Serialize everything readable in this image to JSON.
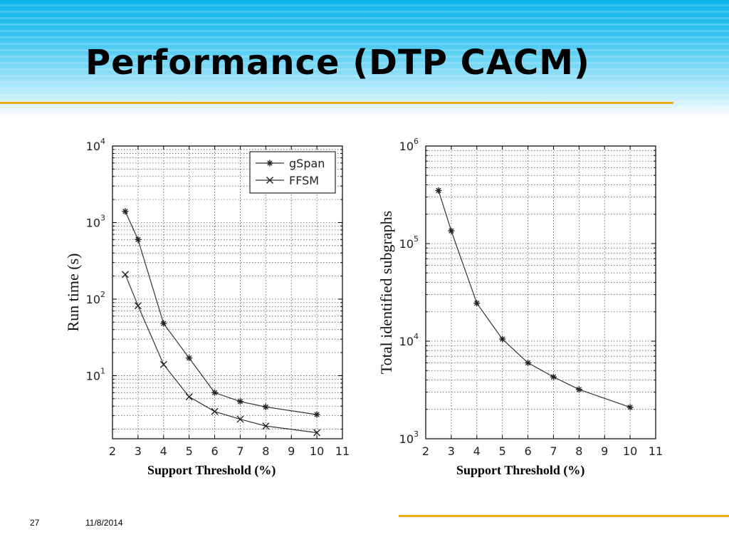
{
  "slide": {
    "title": "Performance (DTP CACM)",
    "page_number": "27",
    "date": "11/8/2014",
    "accent_color": "#f0a90f",
    "band_color": "#0bb3ea"
  },
  "chart_data": [
    {
      "type": "line",
      "xscale": "linear",
      "yscale": "log",
      "xlim": [
        2,
        11
      ],
      "ylim": [
        1.5,
        10000
      ],
      "xticks": [
        2,
        3,
        4,
        5,
        6,
        7,
        8,
        9,
        10,
        11
      ],
      "yticks": [
        {
          "value": 10,
          "base": "10",
          "exp": "1"
        },
        {
          "value": 100,
          "base": "10",
          "exp": "2"
        },
        {
          "value": 1000,
          "base": "10",
          "exp": "3"
        },
        {
          "value": 10000,
          "base": "10",
          "exp": "4"
        }
      ],
      "xlabel": "Support Threshold (%)",
      "ylabel": "Run time (s)",
      "grid": true,
      "legend": "top-right",
      "series": [
        {
          "name": "gSpan",
          "marker": "asterisk",
          "x": [
            2.5,
            3,
            4,
            5,
            6,
            7,
            8,
            10
          ],
          "y": [
            1400,
            600,
            48,
            17,
            6,
            4.6,
            3.9,
            3.1
          ]
        },
        {
          "name": "FFSM",
          "marker": "x",
          "x": [
            2.5,
            3,
            4,
            5,
            6,
            7,
            8,
            10
          ],
          "y": [
            210,
            82,
            14,
            5.3,
            3.4,
            2.7,
            2.2,
            1.8
          ]
        }
      ]
    },
    {
      "type": "line",
      "xscale": "linear",
      "yscale": "log",
      "xlim": [
        2,
        11
      ],
      "ylim": [
        1000,
        1000000
      ],
      "xticks": [
        2,
        3,
        4,
        5,
        6,
        7,
        8,
        9,
        10,
        11
      ],
      "yticks": [
        {
          "value": 1000,
          "base": "10",
          "exp": "3"
        },
        {
          "value": 10000,
          "base": "10",
          "exp": "4"
        },
        {
          "value": 100000,
          "base": "10",
          "exp": "5"
        },
        {
          "value": 1000000,
          "base": "10",
          "exp": "6"
        }
      ],
      "xlabel": "Support Threshold (%)",
      "ylabel": "Total identified subgraphs",
      "grid": true,
      "series": [
        {
          "marker": "asterisk",
          "x": [
            2.5,
            3,
            4,
            5,
            6,
            7,
            8,
            10
          ],
          "y": [
            350000,
            135000,
            24500,
            10500,
            6000,
            4300,
            3200,
            2100
          ]
        }
      ]
    }
  ]
}
